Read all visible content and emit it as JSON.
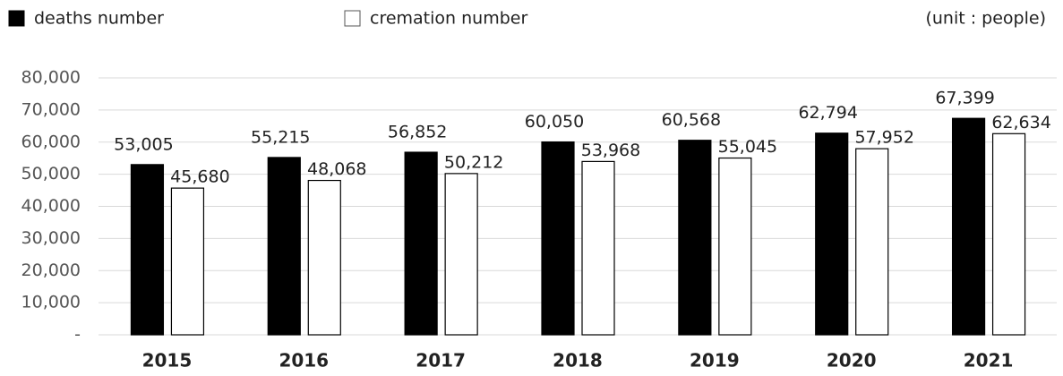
{
  "chart_data": {
    "type": "bar",
    "note": "(unit : people)",
    "categories": [
      "2015",
      "2016",
      "2017",
      "2018",
      "2019",
      "2020",
      "2021"
    ],
    "series": [
      {
        "name": "deaths number",
        "color": "#000000",
        "values": [
          53005,
          55215,
          56852,
          60050,
          60568,
          62794,
          67399
        ],
        "value_labels": [
          "53,005",
          "55,215",
          "56,852",
          "60,050",
          "60,568",
          "62,794",
          "67,399"
        ]
      },
      {
        "name": "cremation number",
        "color": "#ffffff",
        "values": [
          45680,
          48068,
          50212,
          53968,
          55045,
          57952,
          62634
        ],
        "value_labels": [
          "45,680",
          "48,068",
          "50,212",
          "53,968",
          "55,045",
          "57,952",
          "62,634"
        ]
      }
    ],
    "ylim": [
      0,
      80000
    ],
    "yticks": [
      {
        "value": 0,
        "label": "-"
      },
      {
        "value": 10000,
        "label": "10,000"
      },
      {
        "value": 20000,
        "label": "20,000"
      },
      {
        "value": 30000,
        "label": "30,000"
      },
      {
        "value": 40000,
        "label": "40,000"
      },
      {
        "value": 50000,
        "label": "50,000"
      },
      {
        "value": 60000,
        "label": "60,000"
      },
      {
        "value": 70000,
        "label": "70,000"
      },
      {
        "value": 80000,
        "label": "80,000"
      }
    ],
    "grid": true
  }
}
